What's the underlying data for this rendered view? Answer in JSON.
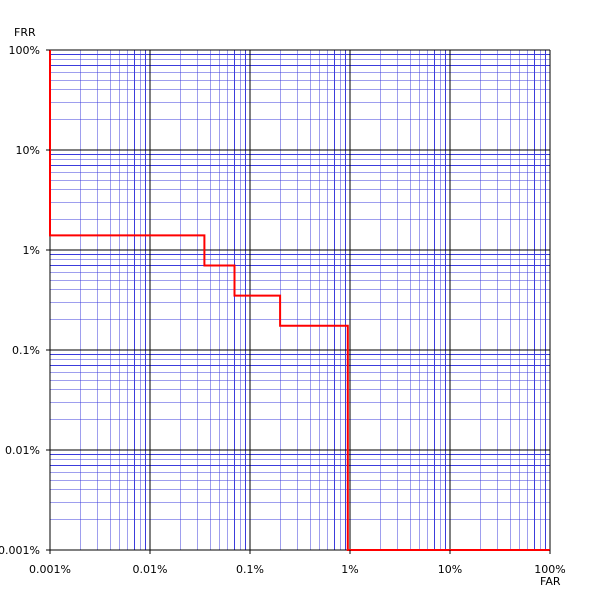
{
  "chart_data": {
    "type": "line",
    "xlabel": "FAR",
    "ylabel": "FRR",
    "xscale": "log",
    "yscale": "log",
    "xlim": [
      0.001,
      100
    ],
    "ylim": [
      0.001,
      100
    ],
    "grid": true,
    "x_tick_labels": [
      "0.001%",
      "0.01%",
      "0.1%",
      "1%",
      "10%",
      "100%"
    ],
    "y_tick_labels": [
      "0.001%",
      "0.01%",
      "0.1%",
      "1%",
      "10%",
      "100%"
    ],
    "series": [
      {
        "style": "step",
        "points": [
          [
            0.001,
            100
          ],
          [
            0.001,
            1.4
          ],
          [
            0.035,
            1.4
          ],
          [
            0.035,
            0.7
          ],
          [
            0.07,
            0.7
          ],
          [
            0.07,
            0.35
          ],
          [
            0.2,
            0.35
          ],
          [
            0.2,
            0.175
          ],
          [
            0.95,
            0.175
          ],
          [
            0.95,
            0.001
          ],
          [
            100,
            0.001
          ]
        ]
      }
    ]
  },
  "colors": {
    "major_grid": "#000000",
    "minor_grid": "#3c3cdc",
    "curve": "#ff0000"
  }
}
